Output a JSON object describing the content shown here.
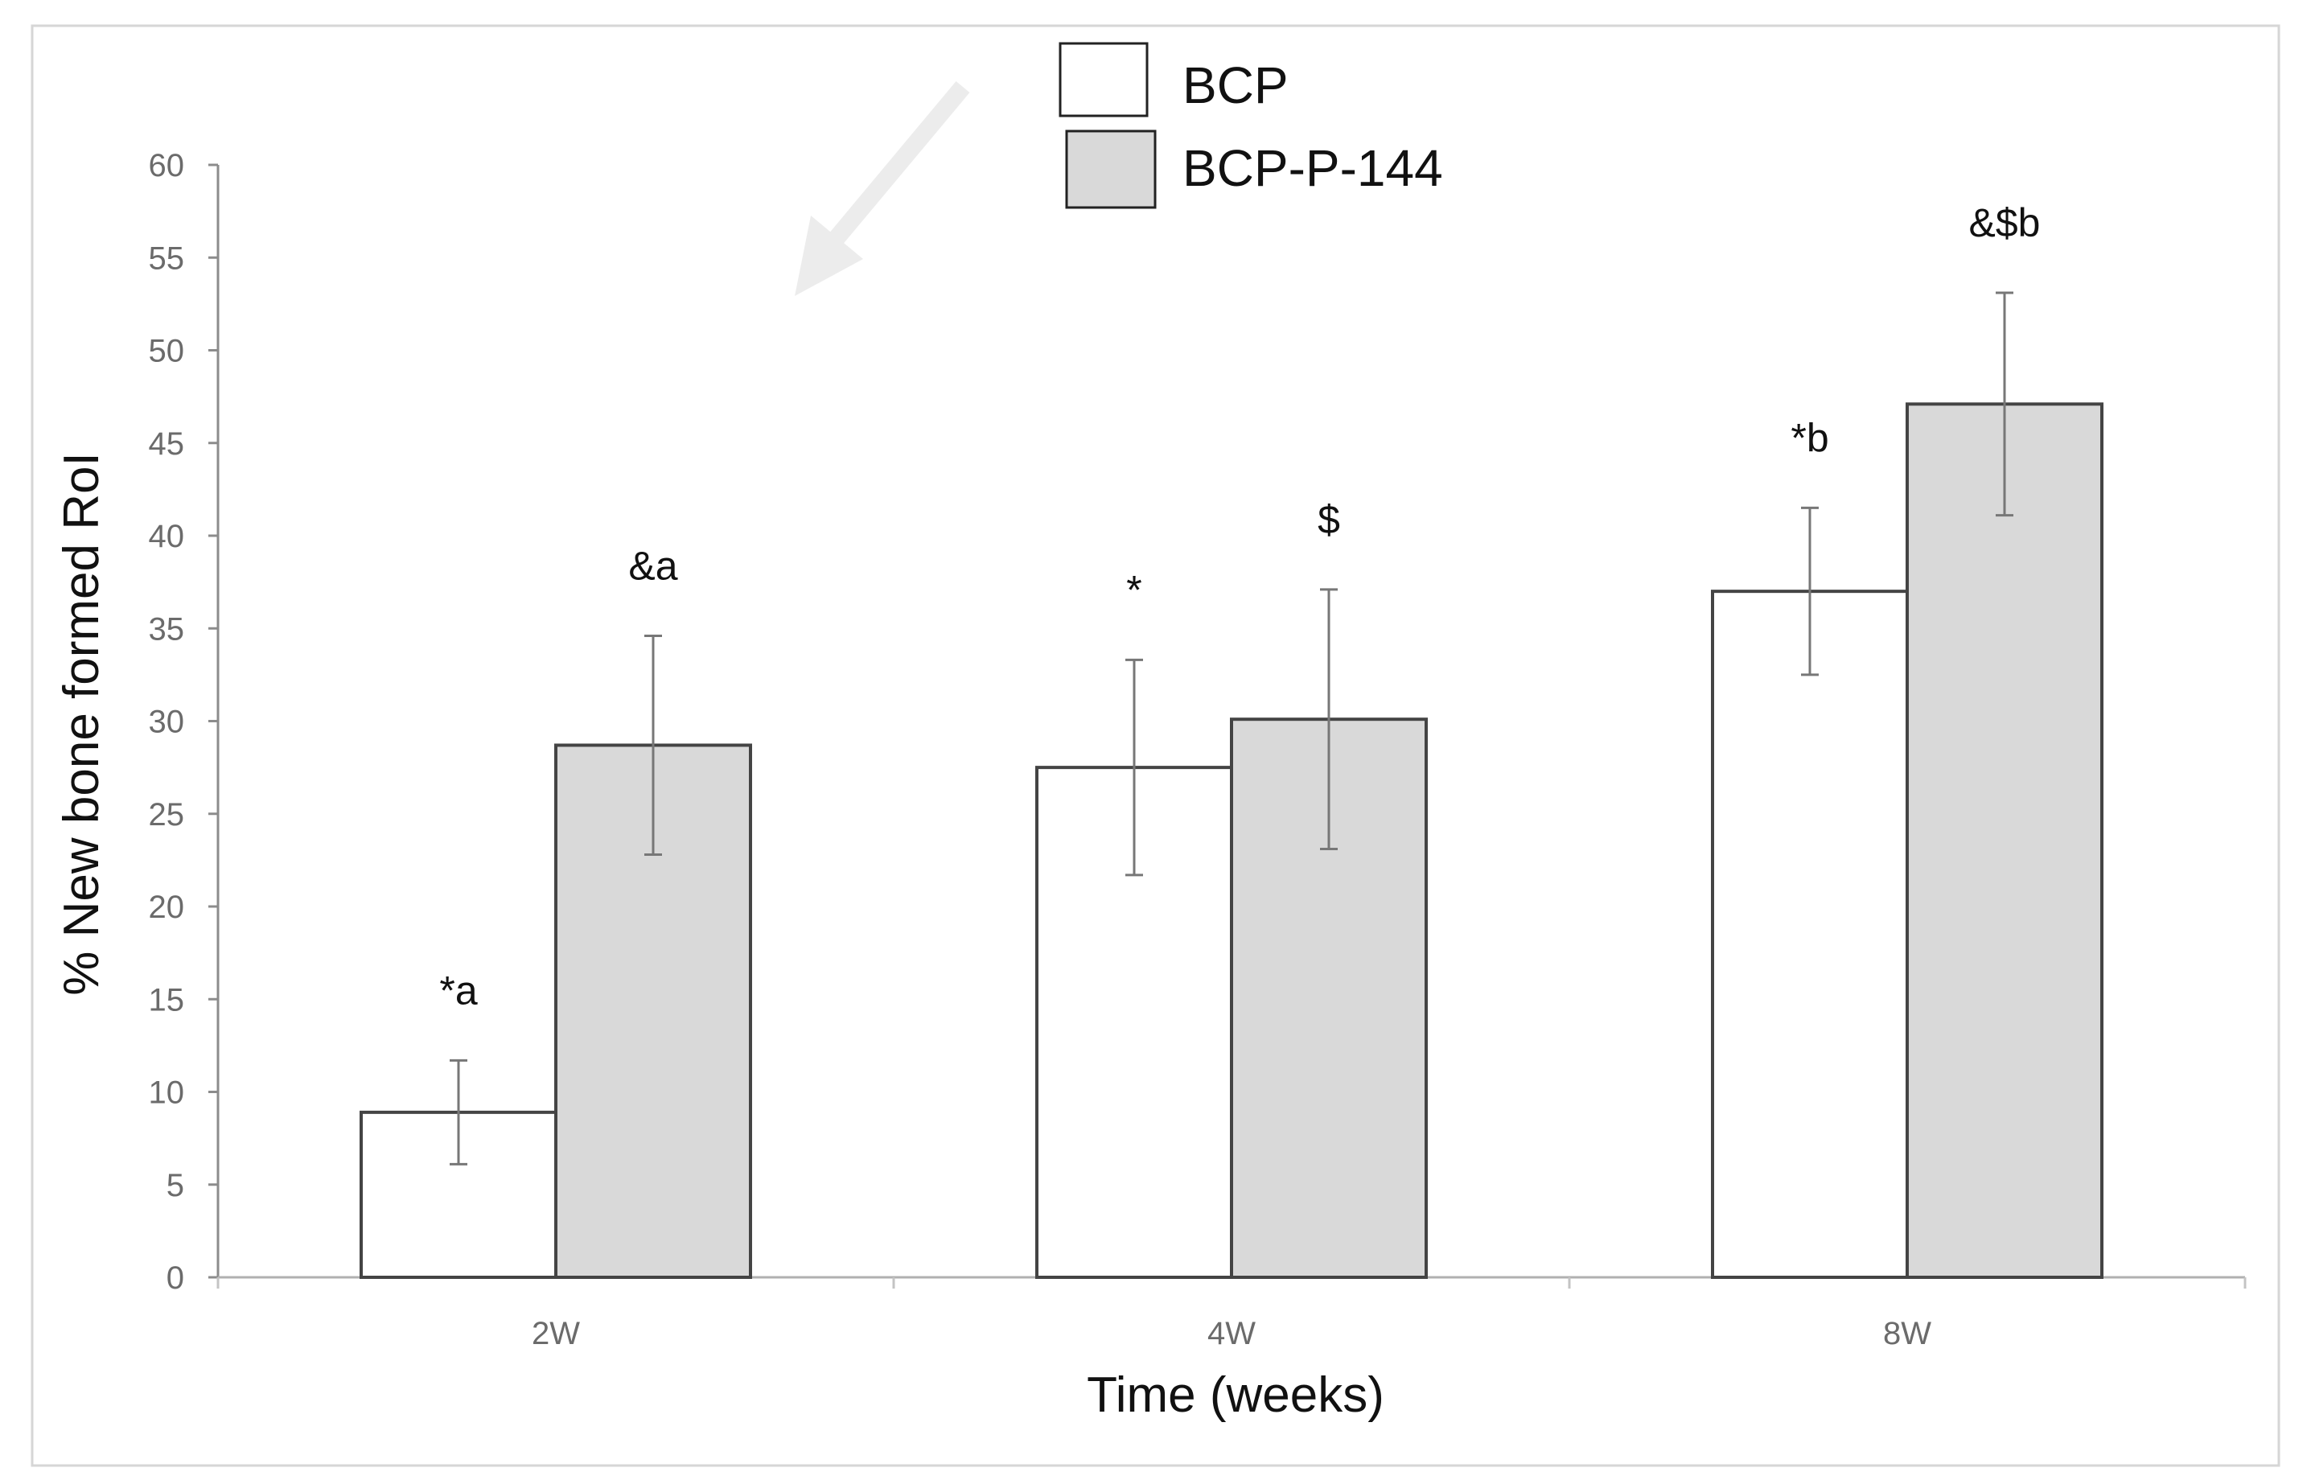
{
  "chart_data": {
    "type": "bar",
    "title": "",
    "xlabel": "Time (weeks)",
    "ylabel": "% New bone formed RoI",
    "categories": [
      "2W",
      "4W",
      "8W"
    ],
    "ylim": [
      0,
      60
    ],
    "ytick_step": 5,
    "yticks": [
      "0",
      "5",
      "10",
      "15",
      "20",
      "25",
      "30",
      "35",
      "40",
      "45",
      "50",
      "55",
      "60"
    ],
    "grid": false,
    "legend_position": "top-center",
    "series": [
      {
        "name": "BCP",
        "color": "#ffffff",
        "values": [
          8.9,
          27.5,
          37.0
        ],
        "errors": [
          2.8,
          5.8,
          4.5
        ],
        "annotations": [
          "*a",
          "*",
          "*b"
        ]
      },
      {
        "name": "BCP-P-144",
        "color": "#d9d9d9",
        "values": [
          28.7,
          30.1,
          47.1
        ],
        "errors": [
          5.9,
          7.0,
          6.0
        ],
        "annotations": [
          "&a",
          "$",
          "&$b"
        ]
      }
    ]
  }
}
